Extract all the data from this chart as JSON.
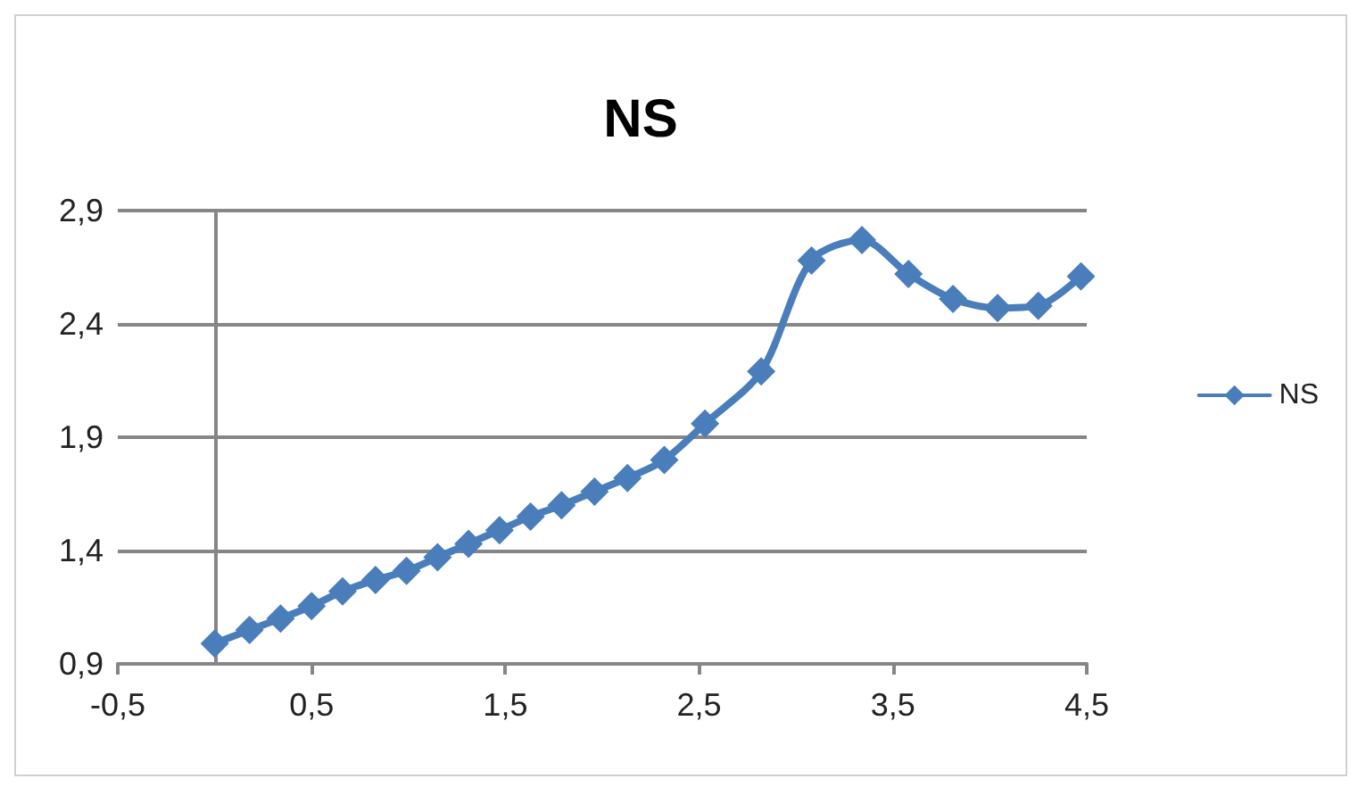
{
  "chart_data": {
    "type": "line",
    "title": "NS",
    "x": [
      0.0,
      0.18,
      0.34,
      0.5,
      0.66,
      0.83,
      0.99,
      1.15,
      1.31,
      1.47,
      1.63,
      1.79,
      1.96,
      2.13,
      2.32,
      2.53,
      2.82,
      3.08,
      3.34,
      3.58,
      3.81,
      4.04,
      4.25,
      4.47
    ],
    "series": [
      {
        "name": "NS",
        "color": "#4a7ebb",
        "values": [
          0.99,
          1.05,
          1.1,
          1.155,
          1.22,
          1.27,
          1.31,
          1.37,
          1.43,
          1.49,
          1.55,
          1.6,
          1.66,
          1.72,
          1.8,
          1.96,
          2.19,
          2.68,
          2.77,
          2.62,
          2.51,
          2.47,
          2.48,
          2.61
        ]
      }
    ],
    "xlim": [
      -0.5,
      4.5
    ],
    "xticks": [
      {
        "value": -0.5,
        "label": "-0,5"
      },
      {
        "value": 0.5,
        "label": "0,5"
      },
      {
        "value": 1.5,
        "label": "1,5"
      },
      {
        "value": 2.5,
        "label": "2,5"
      },
      {
        "value": 3.5,
        "label": "3,5"
      },
      {
        "value": 4.5,
        "label": "4,5"
      }
    ],
    "ylim": [
      0.9,
      2.9
    ],
    "yticks": [
      {
        "value": 0.9,
        "label": "0,9"
      },
      {
        "value": 1.4,
        "label": "1,4"
      },
      {
        "value": 1.9,
        "label": "1,9"
      },
      {
        "value": 2.4,
        "label": "2,4"
      },
      {
        "value": 2.9,
        "label": "2,9"
      }
    ],
    "grid": "y",
    "legend": "right",
    "marker": "diamond",
    "line_style": "solid"
  }
}
